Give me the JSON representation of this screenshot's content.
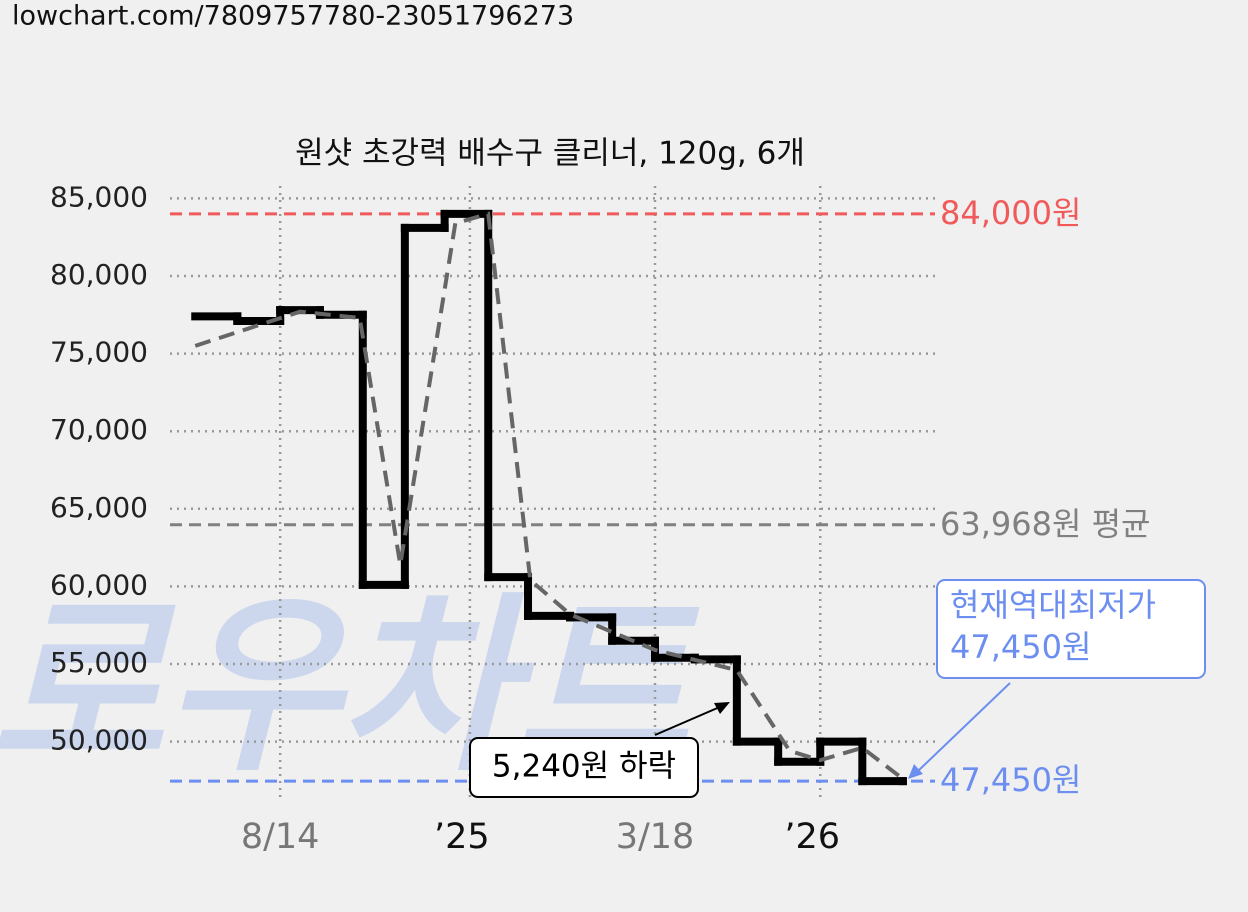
{
  "source": "lowchart.com/7809757780-23051796273",
  "watermark": "로우차트",
  "chart_data": {
    "type": "step",
    "title": "원샷 초강력 배수구 클리너, 120g, 6개",
    "xlim": [
      0,
      100
    ],
    "xticks": [
      {
        "value": 14.4,
        "label": "8/14"
      },
      {
        "value": 39.2,
        "label": "’25"
      },
      {
        "value": 63.4,
        "label": "3/18"
      },
      {
        "value": 85.0,
        "label": "’26"
      }
    ],
    "ylim": [
      46300,
      85800
    ],
    "yticks": [
      {
        "value": 50000,
        "label": "50,000"
      },
      {
        "value": 55000,
        "label": "55,000"
      },
      {
        "value": 60000,
        "label": "60,000"
      },
      {
        "value": 65000,
        "label": "65,000"
      },
      {
        "value": 70000,
        "label": "70,000"
      },
      {
        "value": 75000,
        "label": "75,000"
      },
      {
        "value": 80000,
        "label": "80,000"
      },
      {
        "value": 85000,
        "label": "85,000"
      }
    ],
    "grid": true,
    "series": [
      {
        "kind": "step",
        "color": "#000000",
        "x": [
          3.3,
          8.8,
          14.4,
          19.6,
          25.2,
          30.7,
          35.9,
          41.6,
          46.8,
          52.3,
          57.8,
          63.4,
          68.6,
          74.1,
          79.5,
          85.0,
          90.5,
          95.8
        ],
        "values": [
          77400,
          77100,
          77800,
          77500,
          60100,
          83100,
          84000,
          60600,
          58100,
          58000,
          56500,
          55400,
          55300,
          50000,
          48700,
          50000,
          47450,
          47450
        ]
      },
      {
        "kind": "trend",
        "color": "#666666",
        "x": [
          3.3,
          17.0,
          24.8,
          30.1,
          37.3,
          41.6,
          47.1,
          52.3,
          63.4,
          74.1,
          81.0,
          85.0,
          90.5,
          95.8
        ],
        "values": [
          75500,
          77700,
          77300,
          61400,
          83400,
          84000,
          60400,
          58200,
          55900,
          54600,
          49400,
          48800,
          49600,
          47600
        ]
      }
    ],
    "hlines": [
      {
        "value": 84000,
        "label": "84,000원",
        "color": "#f05a5a"
      },
      {
        "value": 63968,
        "label": "63,968원 평균",
        "color": "#808080"
      },
      {
        "value": 47450,
        "label": "47,450원",
        "color": "#6b8ef0"
      }
    ],
    "annotations": [
      {
        "text": "5,240원 하락",
        "value": 5240
      },
      {
        "lines": [
          "현재역대최저가",
          "47,450원"
        ],
        "value": 47450
      }
    ]
  }
}
